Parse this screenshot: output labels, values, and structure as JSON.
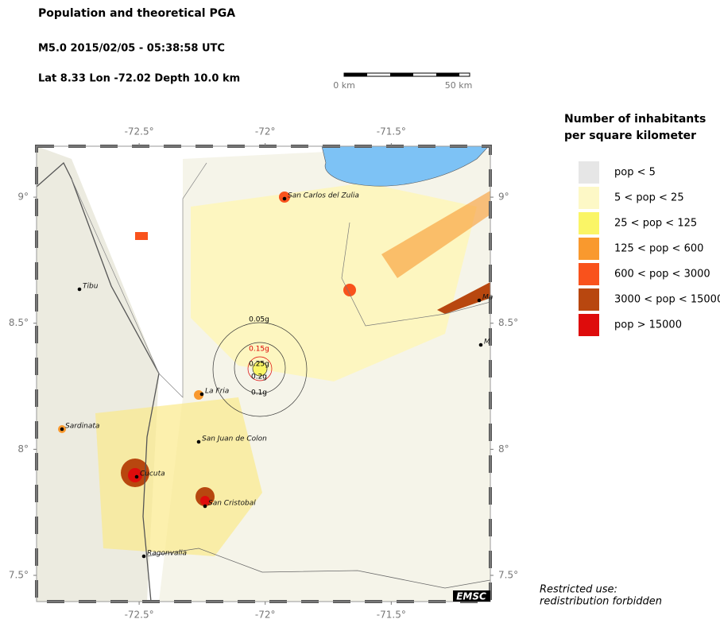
{
  "header": {
    "title": "Population and theoretical PGA",
    "event": "M5.0  2015/02/05 - 05:38:58 UTC",
    "location": "Lat  8.33    Lon -72.02    Depth  10.0 km"
  },
  "scale_bar": {
    "start": "0 km",
    "end": "50 km"
  },
  "map": {
    "lonlim": [
      -72.907,
      -71.107
    ],
    "latlim": [
      7.396,
      9.202
    ],
    "lonticks": [
      {
        "value": -72.5,
        "label": "-72.5°"
      },
      {
        "value": -72,
        "label": "-72°"
      },
      {
        "value": -71.5,
        "label": "-71.5°"
      }
    ],
    "latticks": [
      {
        "value": 9,
        "label": "9°"
      },
      {
        "value": 8.5,
        "label": "8.5°"
      },
      {
        "value": 8,
        "label": "8°"
      },
      {
        "value": 7.5,
        "label": "7.5°"
      }
    ],
    "cities": [
      "Tibu",
      "San Carlos del Zulia",
      "La Fria",
      "Sardinata",
      "San Juan de Colon",
      "Cucuta",
      "San Cristobal",
      "Ragonvalia",
      "Ma",
      "M"
    ],
    "pga_labels": [
      "0.05g",
      "0.15g",
      "0.25g",
      "0.2g",
      "0.1g"
    ],
    "logo": "EMSC"
  },
  "legend": {
    "title": [
      "Number of inhabitants",
      "per square kilometer"
    ],
    "items": [
      {
        "label": "pop < 5",
        "color": "#e6e6e6"
      },
      {
        "label": "5 < pop < 25",
        "color": "#fdf8c6"
      },
      {
        "label": "25 < pop < 125",
        "color": "#faf566"
      },
      {
        "label": "125 < pop < 600",
        "color": "#f9992e"
      },
      {
        "label": "600 < pop < 3000",
        "color": "#f9521c"
      },
      {
        "label": "3000 < pop < 15000",
        "color": "#b8470f"
      },
      {
        "label": "pop > 15000",
        "color": "#de0c0c"
      }
    ]
  },
  "footer": [
    "Restricted use:",
    "redistribution forbidden"
  ]
}
